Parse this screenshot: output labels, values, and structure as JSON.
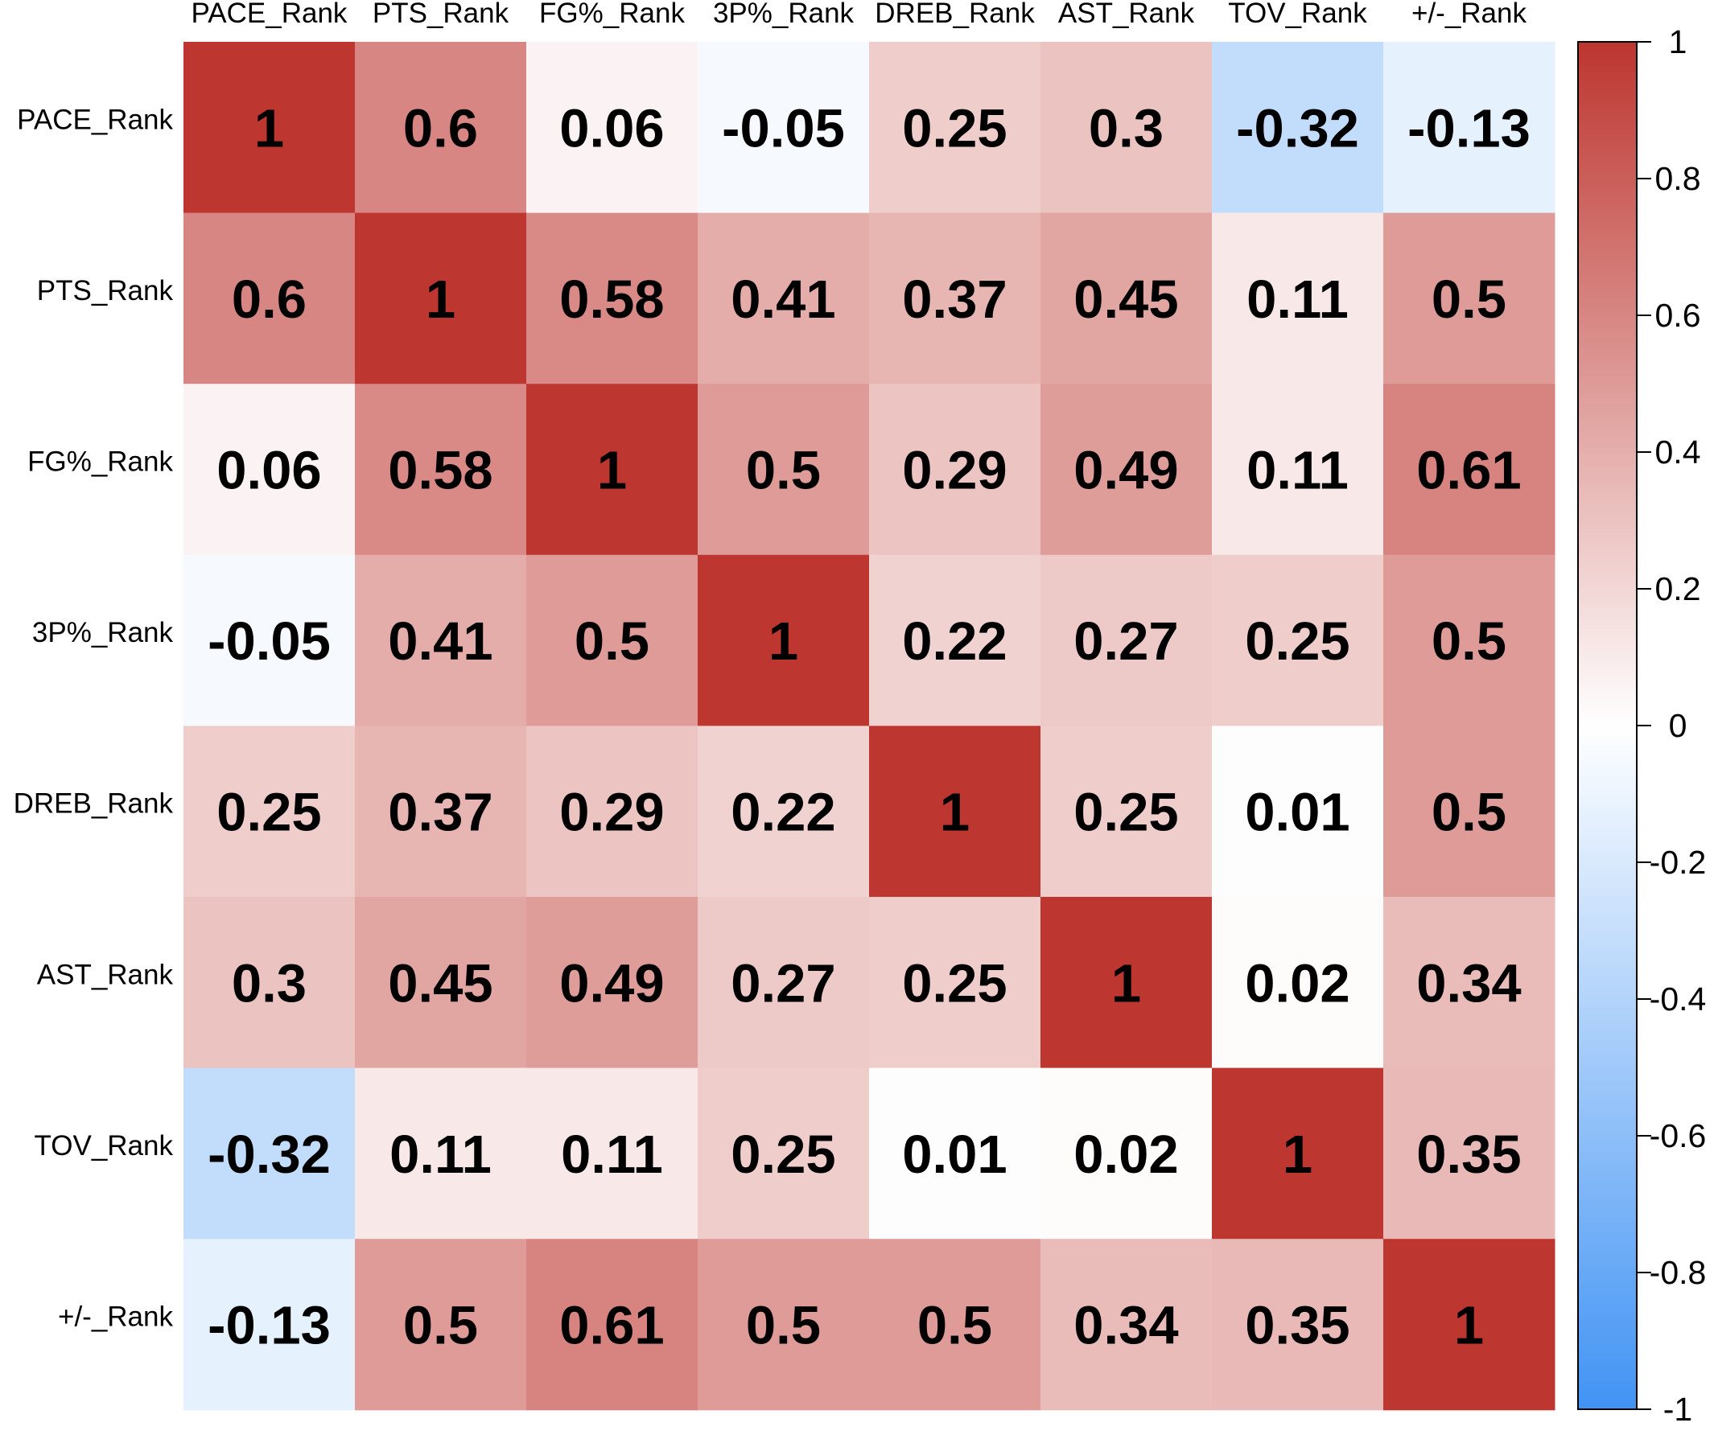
{
  "chart_data": {
    "type": "heatmap",
    "row_labels": [
      "PACE_Rank",
      "PTS_Rank",
      "FG%_Rank",
      "3P%_Rank",
      "DREB_Rank",
      "AST_Rank",
      "TOV_Rank",
      "+/-_Rank"
    ],
    "col_labels": [
      "PACE_Rank",
      "PTS_Rank",
      "FG%_Rank",
      "3P%_Rank",
      "DREB_Rank",
      "AST_Rank",
      "TOV_Rank",
      "+/-_Rank"
    ],
    "values": [
      [
        1,
        0.6,
        0.06,
        -0.05,
        0.25,
        0.3,
        -0.32,
        -0.13
      ],
      [
        0.6,
        1,
        0.58,
        0.41,
        0.37,
        0.45,
        0.11,
        0.5
      ],
      [
        0.06,
        0.58,
        1,
        0.5,
        0.29,
        0.49,
        0.11,
        0.61
      ],
      [
        -0.05,
        0.41,
        0.5,
        1,
        0.22,
        0.27,
        0.25,
        0.5
      ],
      [
        0.25,
        0.37,
        0.29,
        0.22,
        1,
        0.25,
        0.01,
        0.5
      ],
      [
        0.3,
        0.45,
        0.49,
        0.27,
        0.25,
        1,
        0.02,
        0.34
      ],
      [
        -0.32,
        0.11,
        0.11,
        0.25,
        0.01,
        0.02,
        1,
        0.35
      ],
      [
        -0.13,
        0.5,
        0.61,
        0.5,
        0.5,
        0.34,
        0.35,
        1
      ]
    ],
    "cell_text": [
      [
        "1",
        "0.6",
        "0.06",
        "-0.05",
        "0.25",
        "0.3",
        "-0.32",
        "-0.13"
      ],
      [
        "0.6",
        "1",
        "0.58",
        "0.41",
        "0.37",
        "0.45",
        "0.11",
        "0.5"
      ],
      [
        "0.06",
        "0.58",
        "1",
        "0.5",
        "0.29",
        "0.49",
        "0.11",
        "0.61"
      ],
      [
        "-0.05",
        "0.41",
        "0.5",
        "1",
        "0.22",
        "0.27",
        "0.25",
        "0.5"
      ],
      [
        "0.25",
        "0.37",
        "0.29",
        "0.22",
        "1",
        "0.25",
        "0.01",
        "0.5"
      ],
      [
        "0.3",
        "0.45",
        "0.49",
        "0.27",
        "0.25",
        "1",
        "0.02",
        "0.34"
      ],
      [
        "-0.32",
        "0.11",
        "0.11",
        "0.25",
        "0.01",
        "0.02",
        "1",
        "0.35"
      ],
      [
        "-0.13",
        "0.5",
        "0.61",
        "0.5",
        "0.5",
        "0.34",
        "0.35",
        "1"
      ]
    ],
    "color_range": [
      -1,
      1
    ],
    "colors": {
      "min": "#4193f4",
      "mid": "#ffffff",
      "max": "#bd3630"
    },
    "colorbar_ticks": [
      1,
      0.8,
      0.6,
      0.4,
      0.2,
      0,
      -0.2,
      -0.4,
      -0.6,
      -0.8,
      -1
    ],
    "colorbar_tick_labels": [
      "1",
      "0.8",
      "0.6",
      "0.4",
      "0.2",
      "0",
      "-0.2",
      "-0.4",
      "-0.6",
      "-0.8",
      "-1"
    ],
    "column_labels_position": "top",
    "colorbar_position": "right",
    "grid": false
  }
}
